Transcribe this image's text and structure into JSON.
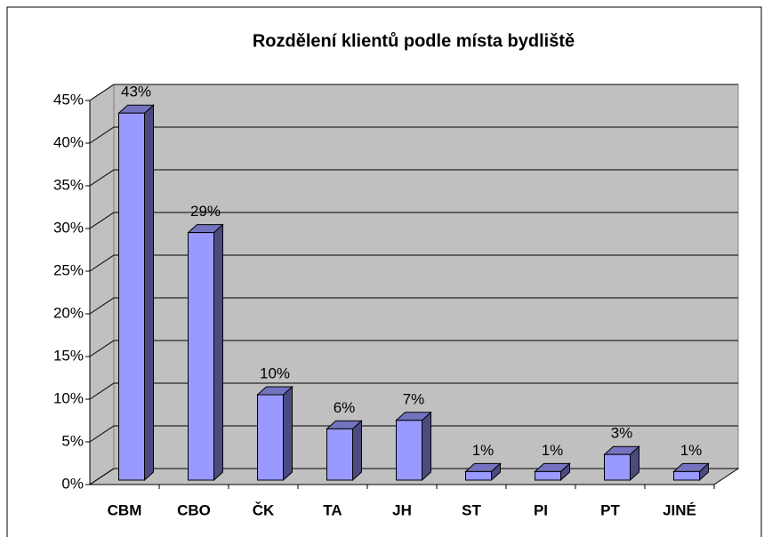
{
  "chart_data": {
    "type": "bar",
    "title": "Rozdělení klientů podle místa bydliště",
    "categories": [
      "CBM",
      "CBO",
      "ČK",
      "TA",
      "JH",
      "ST",
      "PI",
      "PT",
      "JINÉ"
    ],
    "values": [
      43,
      29,
      10,
      6,
      7,
      1,
      1,
      3,
      1
    ],
    "value_labels": [
      "43%",
      "29%",
      "10%",
      "6%",
      "7%",
      "1%",
      "1%",
      "3%",
      "1%"
    ],
    "color": "#9999ff",
    "ylim": [
      0,
      45
    ],
    "yticks": [
      {
        "value": 0,
        "label": "0%"
      },
      {
        "value": 5,
        "label": "5%"
      },
      {
        "value": 10,
        "label": "10%"
      },
      {
        "value": 15,
        "label": "15%"
      },
      {
        "value": 20,
        "label": "20%"
      },
      {
        "value": 25,
        "label": "25%"
      },
      {
        "value": 30,
        "label": "30%"
      },
      {
        "value": 35,
        "label": "35%"
      },
      {
        "value": 40,
        "label": "40%"
      },
      {
        "value": 45,
        "label": "45%"
      }
    ],
    "grid": true
  }
}
